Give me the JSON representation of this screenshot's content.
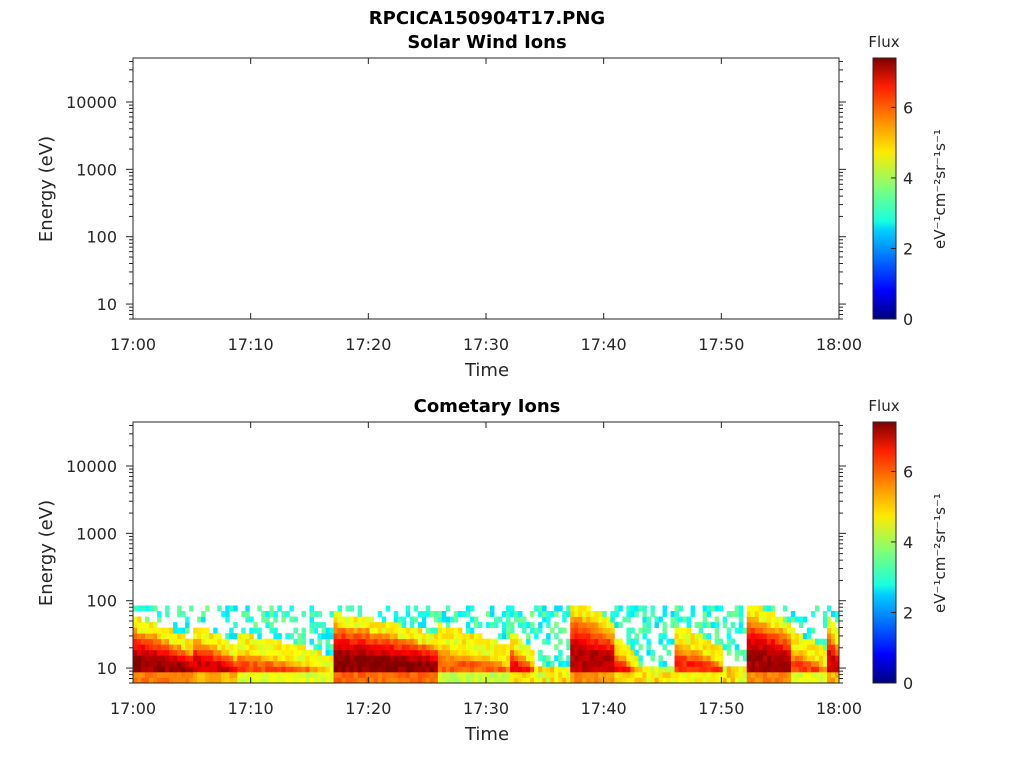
{
  "figure_title": "RPCICA150904T17.PNG",
  "chart_data": [
    {
      "type": "heatmap",
      "title": "Solar Wind Ions",
      "xlabel": "Time",
      "ylabel": "Energy (eV)",
      "x_ticks": [
        "17:00",
        "17:10",
        "17:20",
        "17:30",
        "17:40",
        "17:50",
        "18:00"
      ],
      "x_range": [
        "17:00",
        "18:00"
      ],
      "y_scale": "log",
      "y_ticks": [
        "10",
        "100",
        "1000",
        "10000"
      ],
      "y_tick_values": [
        10,
        100,
        1000,
        10000
      ],
      "ylim": [
        6,
        45000
      ],
      "colorbar": {
        "title": "Flux",
        "label": "eV⁻¹cm⁻²sr⁻¹s⁻¹",
        "ticks": [
          "0",
          "2",
          "4",
          "6"
        ],
        "range": [
          0,
          7.4
        ],
        "colormap": "jet"
      },
      "bursts": []
    },
    {
      "type": "heatmap",
      "title": "Cometary Ions",
      "xlabel": "Time",
      "ylabel": "Energy (eV)",
      "x_ticks": [
        "17:00",
        "17:10",
        "17:20",
        "17:30",
        "17:40",
        "17:50",
        "18:00"
      ],
      "x_range": [
        "17:00",
        "18:00"
      ],
      "y_scale": "log",
      "y_ticks": [
        "10",
        "100",
        "1000",
        "10000"
      ],
      "y_tick_values": [
        10,
        100,
        1000,
        10000
      ],
      "ylim": [
        6,
        45000
      ],
      "colorbar": {
        "title": "Flux",
        "label": "eV⁻¹cm⁻²sr⁻¹s⁻¹",
        "ticks": [
          "0",
          "2",
          "4",
          "6"
        ],
        "range": [
          0,
          7.4
        ],
        "colormap": "jet"
      },
      "background": {
        "energy_max": 80,
        "level": 3.0
      },
      "bursts": [
        {
          "start": "17:00",
          "end": "17:05",
          "energy_top": 38,
          "peak_flux": 7.2
        },
        {
          "start": "17:05",
          "end": "17:09",
          "energy_top": 30,
          "peak_flux": 6.8
        },
        {
          "start": "17:09",
          "end": "17:17",
          "energy_top": 22,
          "peak_flux": 6.0
        },
        {
          "start": "17:17",
          "end": "17:26",
          "energy_top": 45,
          "peak_flux": 7.3
        },
        {
          "start": "17:26",
          "end": "17:32",
          "energy_top": 30,
          "peak_flux": 5.8
        },
        {
          "start": "17:32",
          "end": "17:34",
          "energy_top": 25,
          "peak_flux": 6.5
        },
        {
          "start": "17:37",
          "end": "17:41",
          "energy_top": 70,
          "peak_flux": 7.0
        },
        {
          "start": "17:41",
          "end": "17:43",
          "energy_top": 20,
          "peak_flux": 6.5
        },
        {
          "start": "17:46",
          "end": "17:50",
          "energy_top": 30,
          "peak_flux": 6.2
        },
        {
          "start": "17:52",
          "end": "17:56",
          "energy_top": 65,
          "peak_flux": 7.1
        },
        {
          "start": "17:56",
          "end": "17:59",
          "energy_top": 25,
          "peak_flux": 6.0
        },
        {
          "start": "17:59",
          "end": "18:00",
          "energy_top": 45,
          "peak_flux": 6.8
        }
      ]
    }
  ]
}
